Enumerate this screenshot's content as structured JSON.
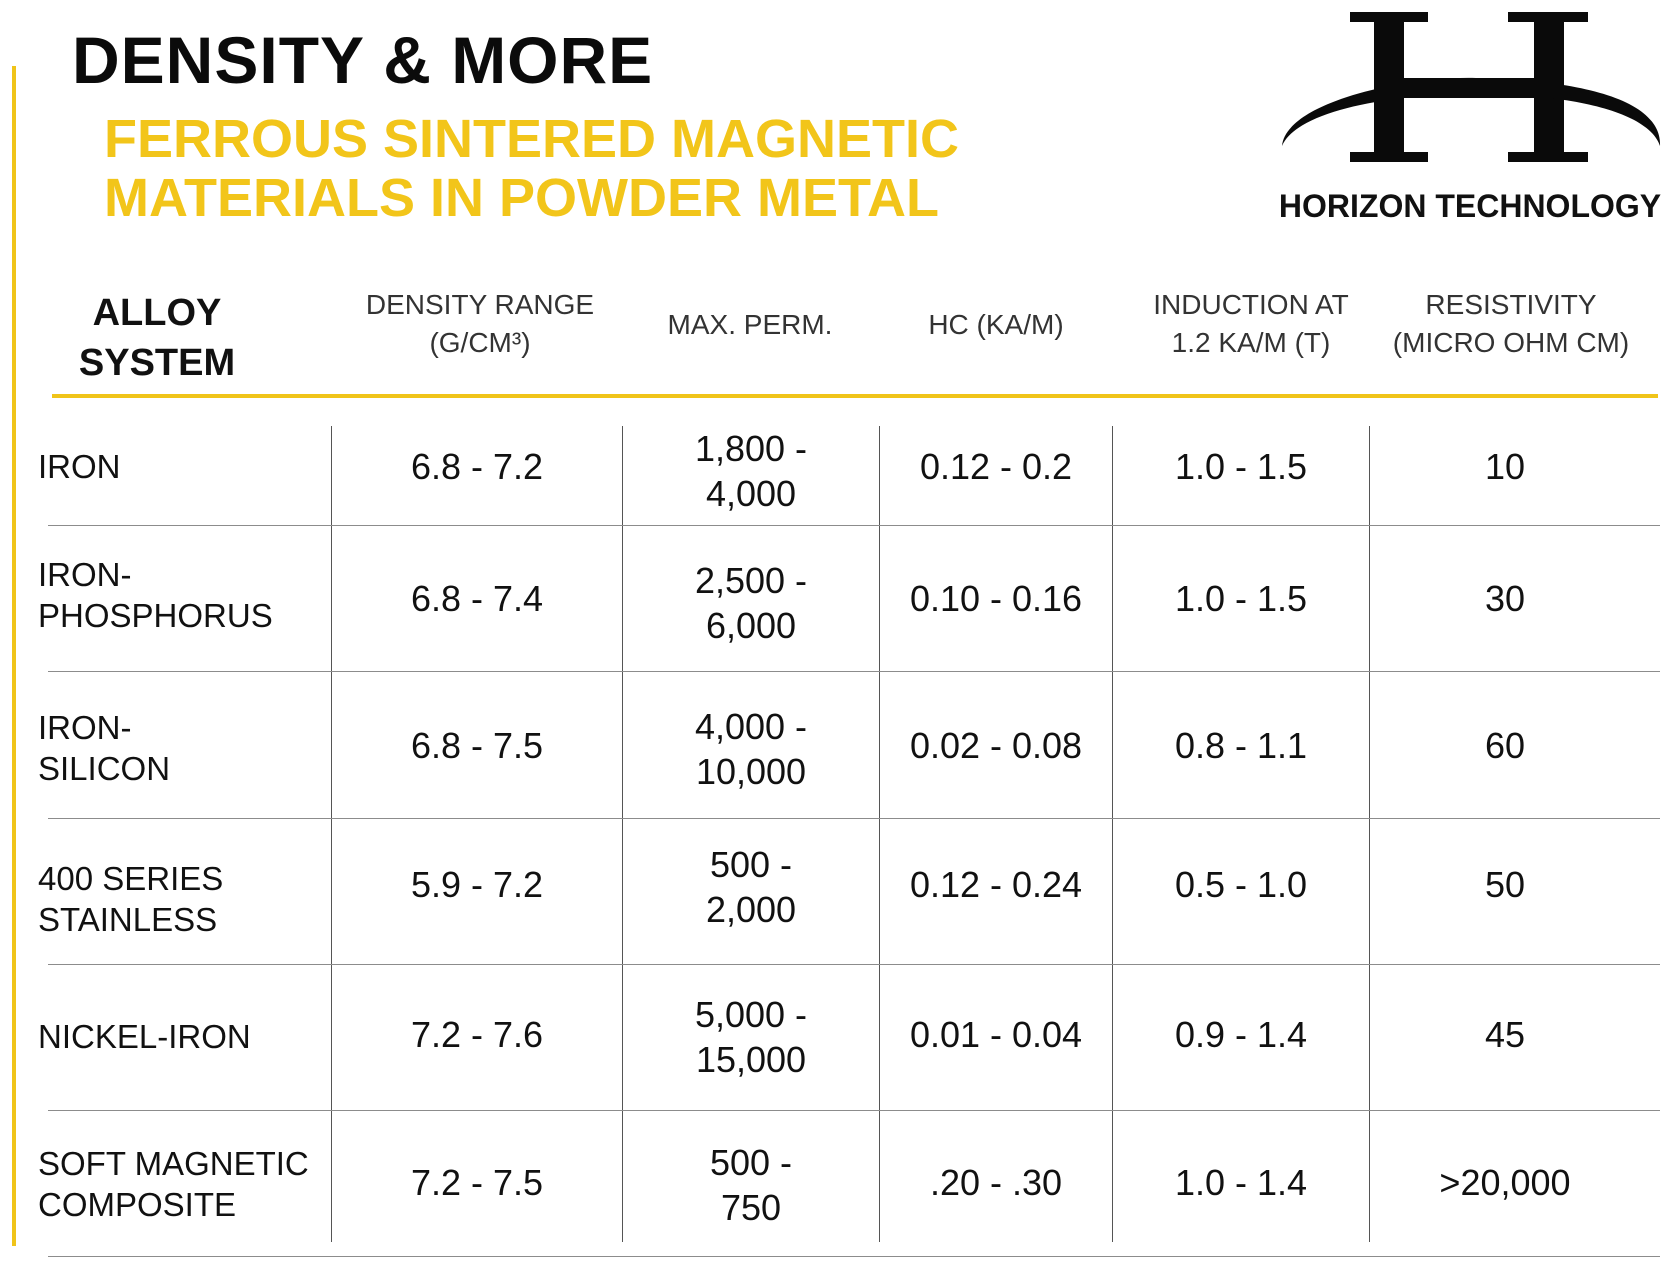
{
  "title": "DENSITY & MORE",
  "subtitle_lines": [
    "FERROUS SINTERED MAGNETIC",
    "MATERIALS IN POWDER METAL"
  ],
  "logo": {
    "text": "HORIZON TECHNOLOGY",
    "icon": "h-swoosh-logo"
  },
  "colors": {
    "accent": "#f2c51a",
    "text": "#111111"
  },
  "table": {
    "headers": {
      "alloy": [
        "ALLOY",
        "SYSTEM"
      ],
      "density": [
        "DENSITY RANGE",
        "(G/CM³)"
      ],
      "perm": [
        "MAX. PERM."
      ],
      "hc": [
        "HC (KA/M)"
      ],
      "induction": [
        "INDUCTION AT",
        "1.2 KA/M (T)"
      ],
      "resistivity": [
        "RESISTIVITY",
        "(MICRO OHM CM)"
      ]
    },
    "rows": [
      {
        "alloy": [
          "IRON"
        ],
        "density": "6.8 - 7.2",
        "perm": [
          "1,800 -",
          "4,000"
        ],
        "hc": "0.12 - 0.2",
        "induction": "1.0 - 1.5",
        "resistivity": "10"
      },
      {
        "alloy": [
          "IRON-",
          "PHOSPHORUS"
        ],
        "density": "6.8 - 7.4",
        "perm": [
          "2,500 -",
          "6,000"
        ],
        "hc": "0.10 - 0.16",
        "induction": "1.0 - 1.5",
        "resistivity": "30"
      },
      {
        "alloy": [
          "IRON-",
          "SILICON"
        ],
        "density": "6.8 - 7.5",
        "perm": [
          "4,000 -",
          "10,000"
        ],
        "hc": "0.02 - 0.08",
        "induction": "0.8 - 1.1",
        "resistivity": "60"
      },
      {
        "alloy": [
          "400 SERIES",
          "STAINLESS"
        ],
        "density": "5.9 - 7.2",
        "perm": [
          "500 -",
          "2,000"
        ],
        "hc": "0.12 - 0.24",
        "induction": "0.5 - 1.0",
        "resistivity": "50"
      },
      {
        "alloy": [
          "NICKEL-IRON"
        ],
        "density": "7.2 - 7.6",
        "perm": [
          "5,000 -",
          "15,000"
        ],
        "hc": "0.01 - 0.04",
        "induction": "0.9 - 1.4",
        "resistivity": "45"
      },
      {
        "alloy": [
          "SOFT MAGNETIC",
          "COMPOSITE"
        ],
        "density": "7.2 - 7.5",
        "perm": [
          "500 -",
          "750"
        ],
        "hc": ".20 - .30",
        "induction": "1.0 - 1.4",
        "resistivity": ">20,000"
      }
    ]
  }
}
